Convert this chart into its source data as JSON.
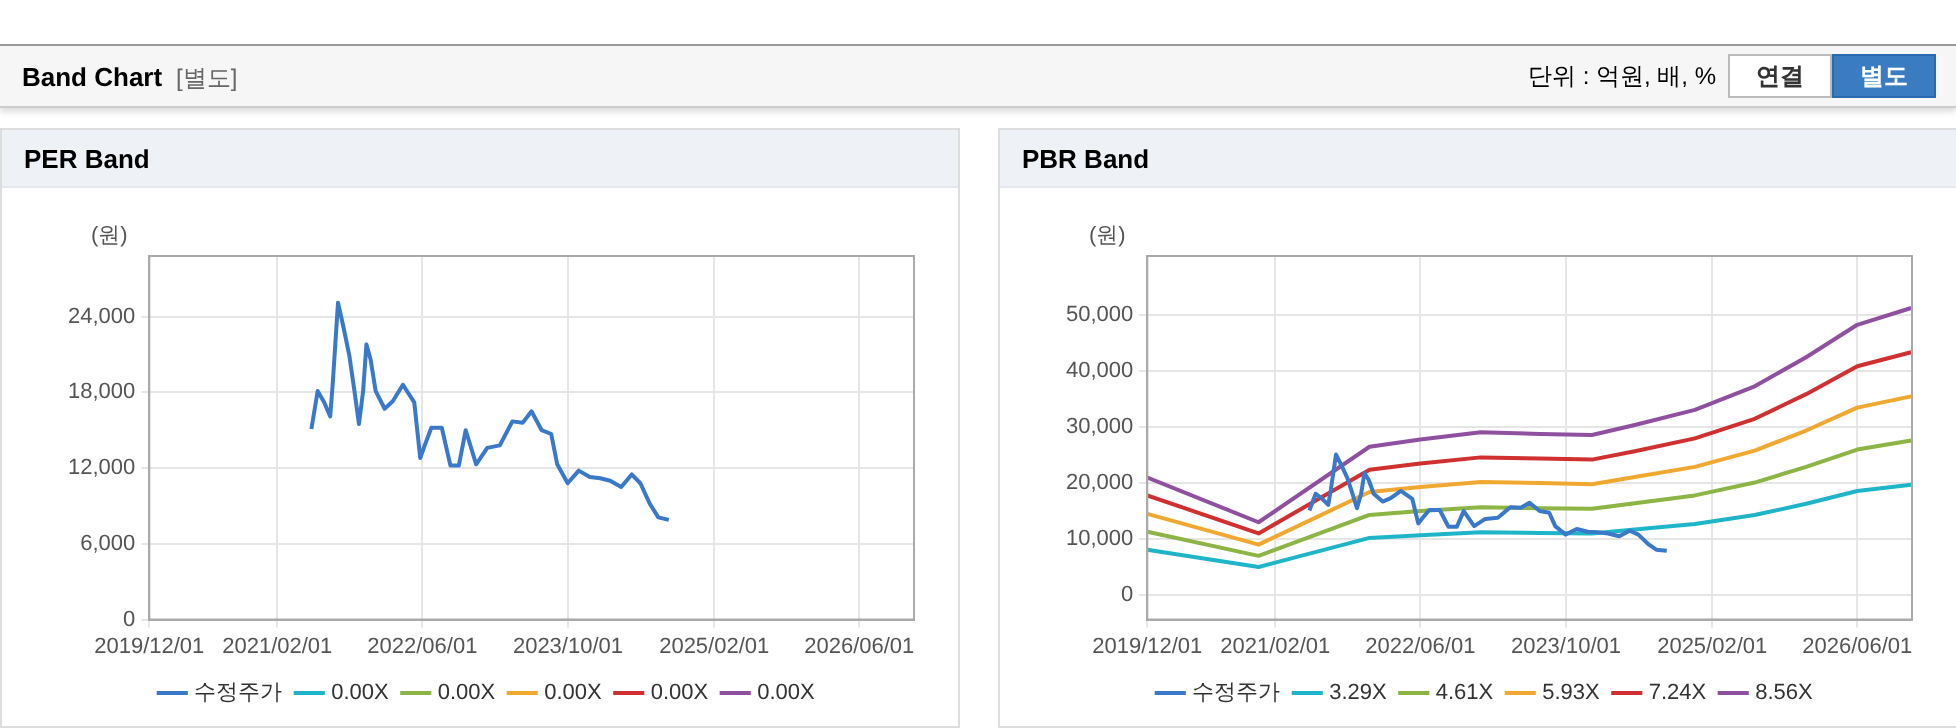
{
  "chart_data": [
    {
      "type": "other",
      "title": "Band Chart",
      "subtitle": "[별도]",
      "annotations": [
        "단위 : 억원, 배, %",
        "연결",
        "별도"
      ]
    },
    {
      "type": "line",
      "title": "PER Band",
      "ylabel": "(원)",
      "legend": "bottom",
      "grid": true,
      "xlim": [
        "2019-12-01",
        "2026-12-01"
      ],
      "xticks": [
        {
          "value": "2019-12-01",
          "label": "2019/12/01"
        },
        {
          "value": "2021-02-01",
          "label": "2021/02/01"
        },
        {
          "value": "2022-06-01",
          "label": "2022/06/01"
        },
        {
          "value": "2023-10-01",
          "label": "2023/10/01"
        },
        {
          "value": "2025-02-01",
          "label": "2025/02/01"
        },
        {
          "value": "2026-06-01",
          "label": "2026/06/01"
        }
      ],
      "ylim": [
        0,
        28800
      ],
      "yticks": [
        0,
        {
          "value": 6000,
          "label": "6,000"
        },
        {
          "value": 12000,
          "label": "12,000"
        },
        {
          "value": 18000,
          "label": "18,000"
        },
        {
          "value": 24000,
          "label": "24,000"
        }
      ],
      "series": [
        {
          "name": "수정주가",
          "color": "#3a78c9",
          "x": [
            "2021-05-26",
            "2021-06-16",
            "2021-07-08",
            "2021-07-28",
            "2021-08-06",
            "2021-08-23",
            "2021-09-10",
            "2021-09-30",
            "2021-10-17",
            "2021-11-01",
            "2021-11-15",
            "2021-11-26",
            "2021-12-10",
            "2021-12-27",
            "2022-01-26",
            "2022-02-22",
            "2022-03-28",
            "2022-05-05",
            "2022-05-25",
            "2022-06-09",
            "2022-07-01",
            "2022-08-05",
            "2022-09-03",
            "2022-10-01",
            "2022-10-24",
            "2022-11-28",
            "2023-01-04",
            "2023-02-15",
            "2023-03-29",
            "2023-05-03",
            "2023-06-01",
            "2023-07-05",
            "2023-08-06",
            "2023-08-26",
            "2023-09-30",
            "2023-11-06",
            "2023-12-13",
            "2024-01-17",
            "2024-02-19",
            "2024-03-27",
            "2024-05-01",
            "2024-05-30",
            "2024-06-30",
            "2024-07-29",
            "2024-09-02"
          ],
          "values": [
            15100,
            18100,
            17200,
            16100,
            18900,
            25100,
            23200,
            20900,
            18100,
            15500,
            18100,
            21800,
            20600,
            18100,
            16700,
            17300,
            18600,
            17200,
            12800,
            13800,
            15200,
            15200,
            12200,
            12200,
            15000,
            12300,
            13600,
            13800,
            15700,
            15600,
            16500,
            15000,
            14700,
            12300,
            10800,
            11800,
            11300,
            11200,
            11000,
            10500,
            11500,
            10800,
            9200,
            8100,
            7900
          ]
        },
        {
          "name": "0.00X",
          "color": "#1fb5c8"
        },
        {
          "name": "0.00X",
          "color": "#8cb545"
        },
        {
          "name": "0.00X",
          "color": "#f0a830"
        },
        {
          "name": "0.00X",
          "color": "#d03030"
        },
        {
          "name": "0.00X",
          "color": "#9050a0"
        }
      ]
    },
    {
      "type": "line",
      "title": "PBR Band",
      "ylabel": "(원)",
      "legend": "bottom",
      "grid": true,
      "xlim": [
        "2019-12-01",
        "2026-12-01"
      ],
      "xticks": [
        {
          "value": "2019-12-01",
          "label": "2019/12/01"
        },
        {
          "value": "2021-02-01",
          "label": "2021/02/01"
        },
        {
          "value": "2022-06-01",
          "label": "2022/06/01"
        },
        {
          "value": "2023-10-01",
          "label": "2023/10/01"
        },
        {
          "value": "2025-02-01",
          "label": "2025/02/01"
        },
        {
          "value": "2026-06-01",
          "label": "2026/06/01"
        }
      ],
      "ylim": [
        -4400,
        60600
      ],
      "yticks": [
        0,
        {
          "value": 10000,
          "label": "10,000"
        },
        {
          "value": 20000,
          "label": "20,000"
        },
        {
          "value": 30000,
          "label": "30,000"
        },
        {
          "value": 40000,
          "label": "40,000"
        },
        {
          "value": 50000,
          "label": "50,000"
        }
      ],
      "x": [
        "2019-12-01",
        "2020-12-07",
        "2021-12-13",
        "2022-06-01",
        "2022-12-20",
        "2023-07-07",
        "2023-12-27",
        "2024-05-18",
        "2024-12-05",
        "2025-06-23",
        "2025-12-12",
        "2026-06-01",
        "2026-11-28"
      ],
      "series": [
        {
          "name": "수정주가",
          "color": "#3a78c9",
          "x": [
            "2021-05-26",
            "2021-06-16",
            "2021-07-08",
            "2021-07-28",
            "2021-08-06",
            "2021-08-23",
            "2021-09-10",
            "2021-09-30",
            "2021-10-17",
            "2021-11-01",
            "2021-11-15",
            "2021-11-26",
            "2021-12-10",
            "2021-12-27",
            "2022-01-26",
            "2022-02-22",
            "2022-03-28",
            "2022-05-05",
            "2022-05-25",
            "2022-06-09",
            "2022-07-01",
            "2022-08-05",
            "2022-09-03",
            "2022-10-01",
            "2022-10-24",
            "2022-11-28",
            "2023-01-04",
            "2023-02-15",
            "2023-03-29",
            "2023-05-03",
            "2023-06-01",
            "2023-07-05",
            "2023-08-06",
            "2023-08-26",
            "2023-09-30",
            "2023-11-06",
            "2023-12-13",
            "2024-01-17",
            "2024-02-19",
            "2024-03-27",
            "2024-05-01",
            "2024-05-30",
            "2024-06-30",
            "2024-07-29",
            "2024-09-02"
          ],
          "values": [
            15100,
            18100,
            17200,
            16100,
            18900,
            25100,
            23200,
            20900,
            18100,
            15500,
            18100,
            21800,
            20600,
            18100,
            16700,
            17300,
            18600,
            17200,
            12800,
            13800,
            15200,
            15200,
            12200,
            12200,
            15000,
            12300,
            13600,
            13800,
            15700,
            15600,
            16500,
            15000,
            14700,
            12300,
            10800,
            11800,
            11300,
            11200,
            11000,
            10500,
            11500,
            10800,
            9200,
            8100,
            7900
          ]
        },
        {
          "name": "3.29X",
          "color": "#1fb5c8",
          "values": [
            8100,
            5000,
            10200,
            10700,
            11200,
            11100,
            11000,
            11700,
            12700,
            14300,
            16300,
            18600,
            19700
          ]
        },
        {
          "name": "4.61X",
          "color": "#8cb545",
          "values": [
            11300,
            7000,
            14300,
            15000,
            15700,
            15500,
            15400,
            16400,
            17800,
            20100,
            22900,
            26000,
            27600
          ]
        },
        {
          "name": "5.93X",
          "color": "#f0a830",
          "values": [
            14500,
            9000,
            18400,
            19300,
            20200,
            20000,
            19800,
            21100,
            22900,
            25800,
            29400,
            33500,
            35500
          ]
        },
        {
          "name": "7.24X",
          "color": "#d03030",
          "values": [
            17800,
            11000,
            22400,
            23500,
            24600,
            24400,
            24200,
            25700,
            28000,
            31500,
            35900,
            40900,
            43400
          ]
        },
        {
          "name": "8.56X",
          "color": "#9050a0",
          "values": [
            21000,
            13000,
            26500,
            27800,
            29100,
            28800,
            28600,
            30400,
            33100,
            37300,
            42500,
            48300,
            51300
          ]
        }
      ]
    }
  ]
}
